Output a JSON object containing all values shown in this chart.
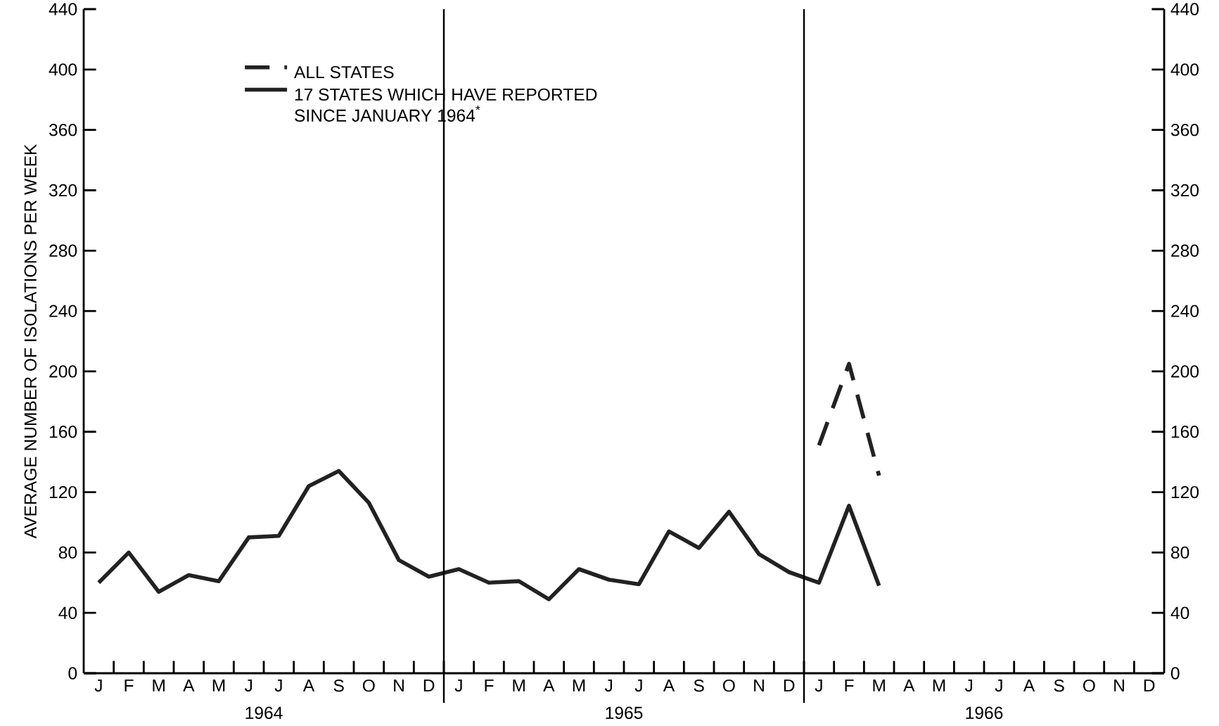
{
  "chart_data": {
    "type": "line",
    "ylabel": "AVERAGE NUMBER OF ISOLATIONS PER WEEK",
    "categories": [
      "J",
      "F",
      "M",
      "A",
      "M",
      "J",
      "J",
      "A",
      "S",
      "O",
      "N",
      "D",
      "J",
      "F",
      "M",
      "A",
      "M",
      "J",
      "J",
      "A",
      "S",
      "O",
      "N",
      "D",
      "J",
      "F",
      "M",
      "A",
      "M",
      "J",
      "J",
      "A",
      "S",
      "O",
      "N",
      "D"
    ],
    "series": [
      {
        "name": "ALL STATES",
        "color": "#222222",
        "line_style": "dashed",
        "values": [
          null,
          null,
          null,
          null,
          null,
          null,
          null,
          null,
          null,
          null,
          null,
          null,
          null,
          null,
          null,
          null,
          null,
          null,
          null,
          null,
          null,
          null,
          null,
          null,
          151,
          205,
          131,
          null,
          null,
          null,
          null,
          null,
          null,
          null,
          null,
          null
        ]
      },
      {
        "name": "17 STATES WHICH HAVE REPORTED SINCE JANUARY 1964$^{*}$",
        "color": "#222222",
        "line_style": "solid",
        "values": [
          60,
          80,
          54,
          65,
          61,
          90,
          91,
          124,
          134,
          113,
          75,
          64,
          69,
          60,
          61,
          49,
          69,
          62,
          59,
          94,
          83,
          107,
          79,
          67,
          60,
          111,
          58,
          null,
          null,
          null,
          null,
          null,
          null,
          null,
          null,
          null
        ]
      }
    ],
    "ylim": [
      0,
      440
    ],
    "yticks": [
      0,
      40,
      80,
      120,
      160,
      200,
      240,
      280,
      320,
      360,
      400,
      440
    ],
    "y2lim": [
      0,
      440
    ],
    "y2ticks": [
      0,
      40,
      80,
      120,
      160,
      200,
      240,
      280,
      320,
      360,
      400,
      440
    ],
    "annotations": [
      "1964",
      "1965",
      "1966"
    ],
    "legend": "top left",
    "grid": false,
    "marker": "none"
  }
}
